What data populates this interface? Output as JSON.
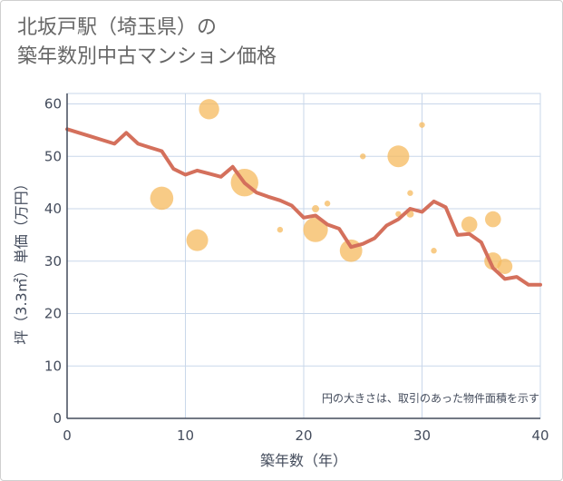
{
  "chart_data": {
    "type": "scatter",
    "title_line1": "北坂戸駅（埼玉県）の",
    "title_line2": "築年数別中古マンション価格",
    "xlabel": "築年数（年）",
    "ylabel": "坪（3.3㎡）単価（万円）",
    "note": "円の大きさは、取引のあった物件面積を示す",
    "xlim": [
      0,
      40
    ],
    "ylim": [
      0,
      62
    ],
    "xticks": [
      0,
      10,
      20,
      30,
      40
    ],
    "yticks": [
      0,
      10,
      20,
      30,
      40,
      50,
      60
    ],
    "xtick_labels": [
      "0",
      "10",
      "20",
      "30",
      "40"
    ],
    "ytick_labels": [
      "0",
      "10",
      "20",
      "30",
      "40",
      "50",
      "60"
    ],
    "colors": {
      "line": "#d4705c",
      "bubble": "#f5b95e",
      "grid": "#c9d7ea",
      "axis": "#444c5c"
    },
    "series": [
      {
        "name": "trend",
        "kind": "line",
        "points": [
          [
            0,
            55.2
          ],
          [
            1,
            54.5
          ],
          [
            2,
            53.8
          ],
          [
            3,
            53.1
          ],
          [
            4,
            52.4
          ],
          [
            5,
            54.5
          ],
          [
            6,
            52.4
          ],
          [
            7,
            51.7
          ],
          [
            8,
            51.0
          ],
          [
            9,
            47.6
          ],
          [
            10,
            46.5
          ],
          [
            11,
            47.3
          ],
          [
            12,
            46.7
          ],
          [
            13,
            46.1
          ],
          [
            14,
            48.0
          ],
          [
            15,
            44.9
          ],
          [
            16,
            43.1
          ],
          [
            17,
            42.3
          ],
          [
            18,
            41.6
          ],
          [
            19,
            40.6
          ],
          [
            20,
            38.3
          ],
          [
            21,
            38.7
          ],
          [
            22,
            37.0
          ],
          [
            23,
            36.2
          ],
          [
            24,
            32.7
          ],
          [
            25,
            33.3
          ],
          [
            26,
            34.4
          ],
          [
            27,
            36.8
          ],
          [
            28,
            38.0
          ],
          [
            29,
            40.0
          ],
          [
            30,
            39.4
          ],
          [
            31,
            41.4
          ],
          [
            32,
            40.3
          ],
          [
            33,
            35.0
          ],
          [
            34,
            35.2
          ],
          [
            35,
            33.6
          ],
          [
            36,
            28.7
          ],
          [
            37,
            26.6
          ],
          [
            38,
            27.0
          ],
          [
            39,
            25.5
          ],
          [
            40,
            25.5
          ]
        ]
      },
      {
        "name": "transactions",
        "kind": "bubble",
        "points": [
          {
            "x": 8,
            "y": 42,
            "size": 3.2
          },
          {
            "x": 11,
            "y": 34,
            "size": 3.0
          },
          {
            "x": 12,
            "y": 59,
            "size": 2.8
          },
          {
            "x": 15,
            "y": 45,
            "size": 3.8
          },
          {
            "x": 18,
            "y": 36,
            "size": 0.8
          },
          {
            "x": 21,
            "y": 36,
            "size": 3.4
          },
          {
            "x": 21,
            "y": 40,
            "size": 1.0
          },
          {
            "x": 22,
            "y": 41,
            "size": 0.8
          },
          {
            "x": 24,
            "y": 32,
            "size": 3.1
          },
          {
            "x": 25,
            "y": 50,
            "size": 0.8
          },
          {
            "x": 28,
            "y": 50,
            "size": 3.0
          },
          {
            "x": 28,
            "y": 39,
            "size": 0.8
          },
          {
            "x": 29,
            "y": 43,
            "size": 0.8
          },
          {
            "x": 29,
            "y": 39,
            "size": 1.0
          },
          {
            "x": 30,
            "y": 56,
            "size": 0.8
          },
          {
            "x": 31,
            "y": 32,
            "size": 0.8
          },
          {
            "x": 34,
            "y": 37,
            "size": 2.2
          },
          {
            "x": 36,
            "y": 38,
            "size": 2.2
          },
          {
            "x": 36,
            "y": 30,
            "size": 2.4
          },
          {
            "x": 37,
            "y": 29,
            "size": 2.1
          }
        ]
      }
    ]
  }
}
